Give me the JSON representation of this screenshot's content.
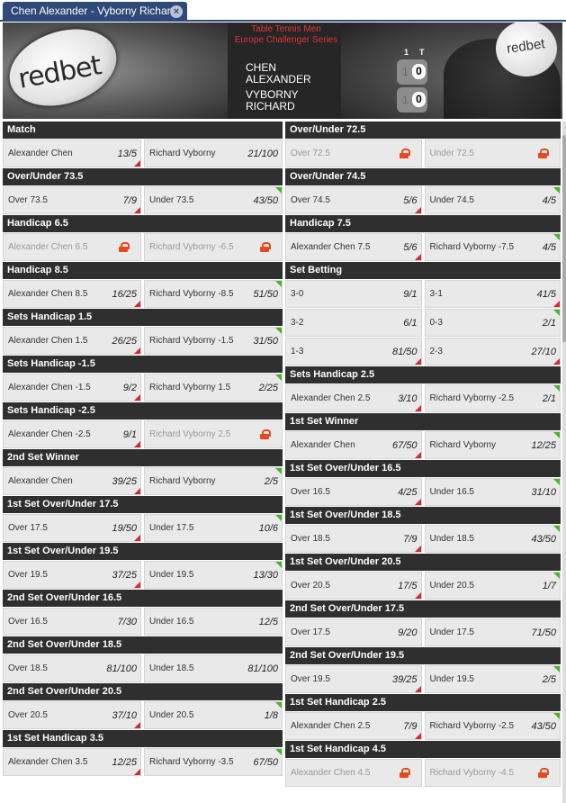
{
  "tab": {
    "label": "Chen Alexander - Vyborny Richard",
    "close": "×"
  },
  "header": {
    "logo": "redbet",
    "ball_logo": "redbet",
    "title_line1": "Table Tennis Men",
    "title_line2": "Europe Challenger Series",
    "player1_line1": "CHEN",
    "player1_line2": "ALEXANDER",
    "player2_line1": "VYBORNY",
    "player2_line2": "RICHARD",
    "col_label_1": "1",
    "col_label_t": "T",
    "p1_set": "1",
    "p1_total": "0",
    "p2_set": "1",
    "p2_total": "0"
  },
  "colors": {
    "accent": "#2f4a79",
    "up": "#4db32a",
    "down": "#d8282b",
    "lock": "#e34a1e",
    "market_header": "#2f2f2f"
  },
  "left_markets": [
    {
      "title": "Match",
      "rows": [
        [
          {
            "n": "Alexander Chen",
            "o": "13/5",
            "t": "dn"
          },
          {
            "n": "Richard Vyborny",
            "o": "21/100",
            "t": ""
          }
        ]
      ]
    },
    {
      "title": "Over/Under 73.5",
      "rows": [
        [
          {
            "n": "Over 73.5",
            "o": "7/9",
            "t": "dn"
          },
          {
            "n": "Under 73.5",
            "o": "43/50",
            "t": "up"
          }
        ]
      ]
    },
    {
      "title": "Handicap 6.5",
      "rows": [
        [
          {
            "n": "Alexander Chen 6.5",
            "o": "",
            "t": "lock"
          },
          {
            "n": "Richard Vyborny -6.5",
            "o": "",
            "t": "lock"
          }
        ]
      ]
    },
    {
      "title": "Handicap 8.5",
      "rows": [
        [
          {
            "n": "Alexander Chen 8.5",
            "o": "16/25",
            "t": "dn"
          },
          {
            "n": "Richard Vyborny -8.5",
            "o": "51/50",
            "t": "up"
          }
        ]
      ]
    },
    {
      "title": "Sets Handicap 1.5",
      "rows": [
        [
          {
            "n": "Alexander Chen 1.5",
            "o": "26/25",
            "t": "dn"
          },
          {
            "n": "Richard Vyborny -1.5",
            "o": "31/50",
            "t": "up"
          }
        ]
      ]
    },
    {
      "title": "Sets Handicap -1.5",
      "rows": [
        [
          {
            "n": "Alexander Chen -1.5",
            "o": "9/2",
            "t": "dn"
          },
          {
            "n": "Richard Vyborny 1.5",
            "o": "2/25",
            "t": "up"
          }
        ]
      ]
    },
    {
      "title": "Sets Handicap -2.5",
      "rows": [
        [
          {
            "n": "Alexander Chen -2.5",
            "o": "9/1",
            "t": "dn"
          },
          {
            "n": "Richard Vyborny 2.5",
            "o": "",
            "t": "lock"
          }
        ]
      ]
    },
    {
      "title": "2nd Set Winner",
      "rows": [
        [
          {
            "n": "Alexander Chen",
            "o": "39/25",
            "t": "dn"
          },
          {
            "n": "Richard Vyborny",
            "o": "2/5",
            "t": "up"
          }
        ]
      ]
    },
    {
      "title": "1st Set Over/Under 17.5",
      "rows": [
        [
          {
            "n": "Over 17.5",
            "o": "19/50",
            "t": "dn"
          },
          {
            "n": "Under 17.5",
            "o": "10/6",
            "t": "up"
          }
        ]
      ]
    },
    {
      "title": "1st Set Over/Under 19.5",
      "rows": [
        [
          {
            "n": "Over 19.5",
            "o": "37/25",
            "t": "dn"
          },
          {
            "n": "Under 19.5",
            "o": "13/30",
            "t": "up"
          }
        ]
      ]
    },
    {
      "title": "2nd Set Over/Under 16.5",
      "rows": [
        [
          {
            "n": "Over 16.5",
            "o": "7/30",
            "t": ""
          },
          {
            "n": "Under 16.5",
            "o": "12/5",
            "t": ""
          }
        ]
      ]
    },
    {
      "title": "2nd Set Over/Under 18.5",
      "rows": [
        [
          {
            "n": "Over 18.5",
            "o": "81/100",
            "t": ""
          },
          {
            "n": "Under 18.5",
            "o": "81/100",
            "t": ""
          }
        ]
      ]
    },
    {
      "title": "2nd Set Over/Under 20.5",
      "rows": [
        [
          {
            "n": "Over 20.5",
            "o": "37/10",
            "t": "dn"
          },
          {
            "n": "Under 20.5",
            "o": "1/8",
            "t": "up"
          }
        ]
      ]
    },
    {
      "title": "1st Set Handicap 3.5",
      "rows": [
        [
          {
            "n": "Alexander Chen 3.5",
            "o": "12/25",
            "t": "dn"
          },
          {
            "n": "Richard Vyborny -3.5",
            "o": "67/50",
            "t": "up"
          }
        ]
      ]
    }
  ],
  "right_markets": [
    {
      "title": "Over/Under 72.5",
      "rows": [
        [
          {
            "n": "Over 72.5",
            "o": "",
            "t": "lock"
          },
          {
            "n": "Under 72.5",
            "o": "",
            "t": "lock"
          }
        ]
      ]
    },
    {
      "title": "Over/Under 74.5",
      "rows": [
        [
          {
            "n": "Over 74.5",
            "o": "5/6",
            "t": "dn"
          },
          {
            "n": "Under 74.5",
            "o": "4/5",
            "t": "up"
          }
        ]
      ]
    },
    {
      "title": "Handicap 7.5",
      "rows": [
        [
          {
            "n": "Alexander Chen 7.5",
            "o": "5/6",
            "t": "dn"
          },
          {
            "n": "Richard Vyborny -7.5",
            "o": "4/5",
            "t": "up"
          }
        ]
      ]
    },
    {
      "title": "Set Betting",
      "rows": [
        [
          {
            "n": "3-0",
            "o": "9/1",
            "t": ""
          },
          {
            "n": "3-1",
            "o": "41/5",
            "t": "dn"
          }
        ],
        [
          {
            "n": "3-2",
            "o": "6/1",
            "t": ""
          },
          {
            "n": "0-3",
            "o": "2/1",
            "t": "up"
          }
        ],
        [
          {
            "n": "1-3",
            "o": "81/50",
            "t": "dn"
          },
          {
            "n": "2-3",
            "o": "27/10",
            "t": "dn"
          }
        ]
      ]
    },
    {
      "title": "Sets Handicap 2.5",
      "rows": [
        [
          {
            "n": "Alexander Chen 2.5",
            "o": "3/10",
            "t": "dn"
          },
          {
            "n": "Richard Vyborny -2.5",
            "o": "2/1",
            "t": "up"
          }
        ]
      ]
    },
    {
      "title": "1st Set Winner",
      "rows": [
        [
          {
            "n": "Alexander Chen",
            "o": "67/50",
            "t": "dn"
          },
          {
            "n": "Richard Vyborny",
            "o": "12/25",
            "t": "up"
          }
        ]
      ]
    },
    {
      "title": "1st Set Over/Under 16.5",
      "rows": [
        [
          {
            "n": "Over 16.5",
            "o": "4/25",
            "t": "dn"
          },
          {
            "n": "Under 16.5",
            "o": "31/10",
            "t": "up"
          }
        ]
      ]
    },
    {
      "title": "1st Set Over/Under 18.5",
      "rows": [
        [
          {
            "n": "Over 18.5",
            "o": "7/9",
            "t": "dn"
          },
          {
            "n": "Under 18.5",
            "o": "43/50",
            "t": "up"
          }
        ]
      ]
    },
    {
      "title": "1st Set Over/Under 20.5",
      "rows": [
        [
          {
            "n": "Over 20.5",
            "o": "17/5",
            "t": "dn"
          },
          {
            "n": "Under 20.5",
            "o": "1/7",
            "t": "up"
          }
        ]
      ]
    },
    {
      "title": "2nd Set Over/Under 17.5",
      "rows": [
        [
          {
            "n": "Over 17.5",
            "o": "9/20",
            "t": ""
          },
          {
            "n": "Under 17.5",
            "o": "71/50",
            "t": ""
          }
        ]
      ]
    },
    {
      "title": "2nd Set Over/Under 19.5",
      "rows": [
        [
          {
            "n": "Over 19.5",
            "o": "39/25",
            "t": "dn"
          },
          {
            "n": "Under 19.5",
            "o": "2/5",
            "t": "up"
          }
        ]
      ]
    },
    {
      "title": "1st Set Handicap 2.5",
      "rows": [
        [
          {
            "n": "Alexander Chen 2.5",
            "o": "7/9",
            "t": "dn"
          },
          {
            "n": "Richard Vyborny -2.5",
            "o": "43/50",
            "t": "up"
          }
        ]
      ]
    },
    {
      "title": "1st Set Handicap 4.5",
      "rows": [
        [
          {
            "n": "Alexander Chen 4.5",
            "o": "",
            "t": "lock"
          },
          {
            "n": "Richard Vyborny -4.5",
            "o": "",
            "t": "lock"
          }
        ]
      ]
    }
  ]
}
